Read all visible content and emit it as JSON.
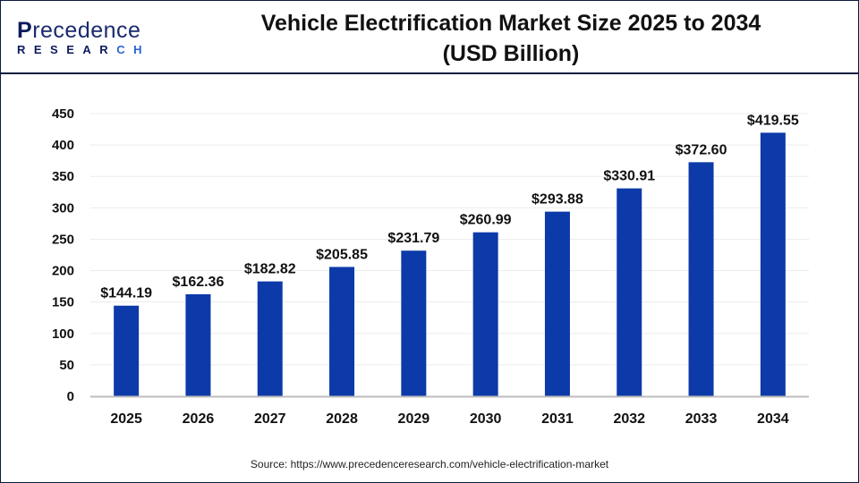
{
  "logo": {
    "line1": "Precedence",
    "line2": "RESEARCH"
  },
  "source": "Source: https://www.precedenceresearch.com/vehicle-electrification-market",
  "chart_data": {
    "type": "bar",
    "title": "Vehicle Electrification Market Size 2025 to 2034 (USD Billion)",
    "title_lines": [
      "Vehicle Electrification Market Size 2025 to 2034",
      "(USD Billion)"
    ],
    "categories": [
      "2025",
      "2026",
      "2027",
      "2028",
      "2029",
      "2030",
      "2031",
      "2032",
      "2033",
      "2034"
    ],
    "values": [
      144.19,
      162.36,
      182.82,
      205.85,
      231.79,
      260.99,
      293.88,
      330.91,
      372.6,
      419.55
    ],
    "data_labels": [
      "$144.19",
      "$162.36",
      "$182.82",
      "$205.85",
      "$231.79",
      "$260.99",
      "$293.88",
      "$330.91",
      "$372.60",
      "$419.55"
    ],
    "xlabel": "",
    "ylabel": "",
    "ylim": [
      0,
      450
    ],
    "yticks": [
      0,
      50,
      100,
      150,
      200,
      250,
      300,
      350,
      400,
      450
    ],
    "grid": true,
    "bar_color": "#0d3aa9"
  }
}
